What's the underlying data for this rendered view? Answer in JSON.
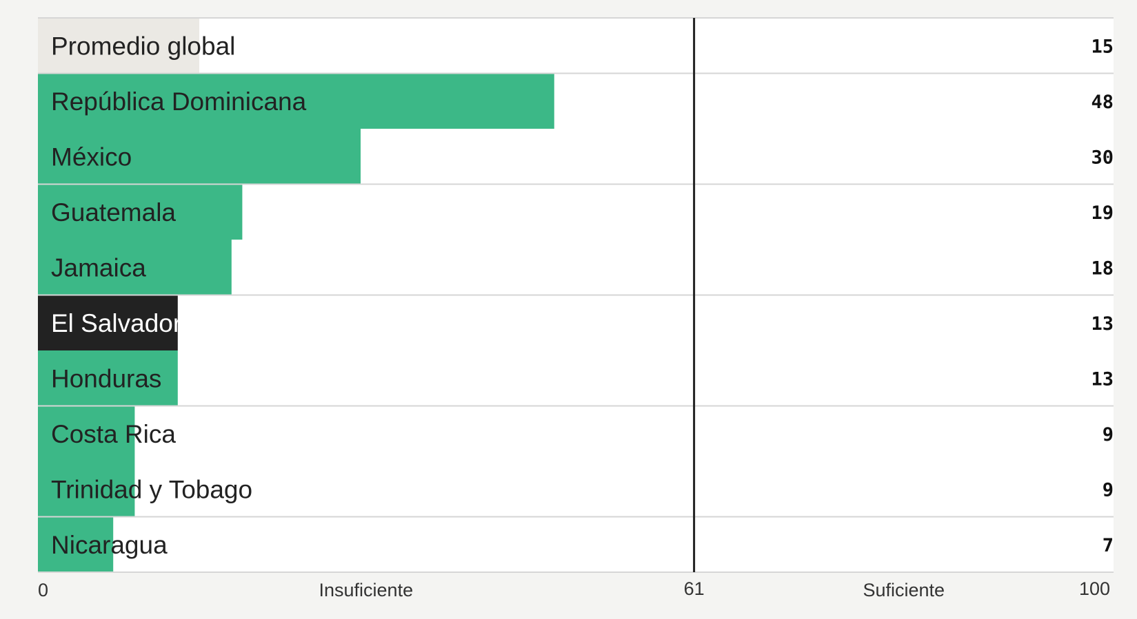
{
  "chart_data": {
    "type": "bar",
    "orientation": "horizontal",
    "categories": [
      "Promedio global",
      "República Dominicana",
      "México",
      "Guatemala",
      "Jamaica",
      "El Salvador",
      "Honduras",
      "Costa Rica",
      "Trinidad y Tobago",
      "Nicaragua"
    ],
    "values": [
      15,
      48,
      30,
      19,
      18,
      13,
      13,
      9,
      9,
      7
    ],
    "value_labels": [
      "15",
      "48",
      "30",
      "19",
      "18",
      "13",
      "13",
      "9",
      "9",
      "7"
    ],
    "bar_colors": [
      "#ebe9e4",
      "#3cb887",
      "#3cb887",
      "#3cb887",
      "#3cb887",
      "#222222",
      "#3cb887",
      "#3cb887",
      "#3cb887",
      "#3cb887"
    ],
    "label_colors": [
      "#222222",
      "#222222",
      "#222222",
      "#222222",
      "#222222",
      "#ffffff",
      "#222222",
      "#222222",
      "#222222",
      "#222222"
    ],
    "group_separators_after": [
      0,
      2,
      4,
      6,
      8
    ],
    "xlim": [
      0,
      100
    ],
    "threshold": {
      "value": 61,
      "label": "61"
    },
    "axis_labels": {
      "min": "0",
      "max": "100",
      "below_threshold": "Insuficiente",
      "above_threshold": "Suficiente"
    },
    "colors": {
      "highlight": "#3cb887",
      "reference": "#ebe9e4",
      "emphasis": "#222222",
      "threshold_line": "#222222"
    }
  }
}
